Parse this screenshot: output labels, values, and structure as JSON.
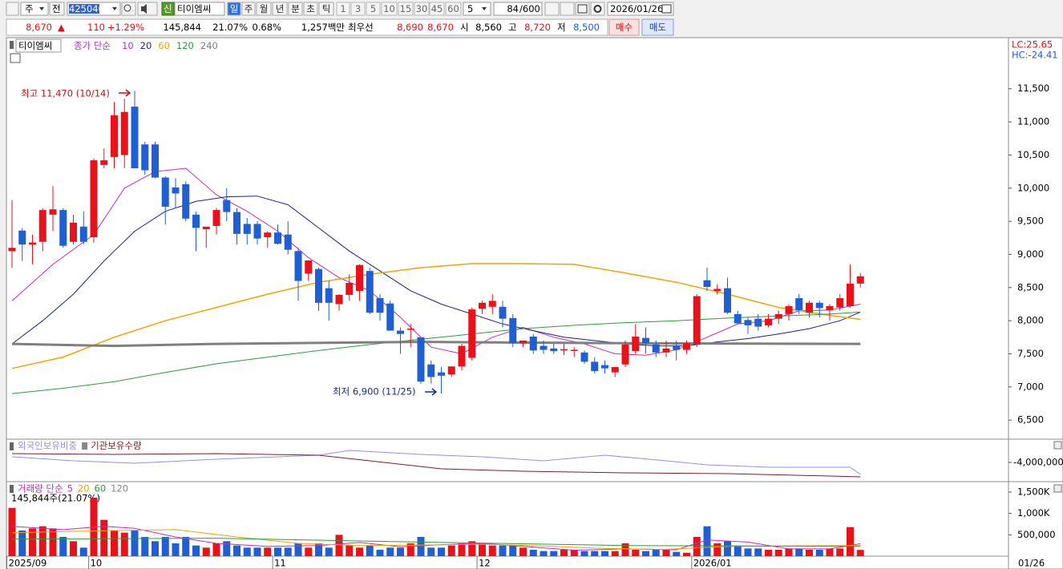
{
  "toolbar": {
    "market": "주",
    "scope": "전",
    "code": "425040",
    "badge": "신",
    "name": "티이엠씨",
    "periods": [
      "일",
      "주",
      "월",
      "년",
      "분",
      "초",
      "틱"
    ],
    "intervals": [
      "1",
      "3",
      "5",
      "10",
      "15",
      "30",
      "45",
      "60"
    ],
    "unit": "5",
    "count": "84",
    "max": "/600",
    "date": "2026/01/26"
  },
  "quote": {
    "price": "8,670",
    "arrow": "▲",
    "change": "110",
    "rate": "+1.29%",
    "volume": "145,844",
    "turnover": "21.07%",
    "ratio": "0.68%",
    "amount": "1,257백만",
    "best_label": "최우선",
    "ask": "8,690",
    "bid": "8,670",
    "open_label": "시",
    "open": "8,560",
    "high_label": "고",
    "high": "8,720",
    "low_label": "저",
    "low": "8,500",
    "buy": "매수",
    "sell": "매도"
  },
  "chart_data": {
    "type": "candlestick",
    "name": "티이엠씨",
    "ma_label": "종가 단순",
    "up_color": "#e8121a",
    "down_color": "#1f5fd1",
    "lc": "LC:25.65",
    "hc": "HC:-24.41",
    "annotations": [
      {
        "text": "최고 11,470 (10/14)",
        "color": "#c0141a"
      },
      {
        "text": "최저 6,900 (11/25)",
        "color": "#1a2a8c"
      }
    ],
    "open": [
      9050,
      9360,
      9150,
      9190,
      9600,
      9670,
      9190,
      9420,
      9260,
      10350,
      10470,
      10500,
      11230,
      10660,
      10660,
      10160,
      10010,
      10060,
      9600,
      9380,
      9430,
      9820,
      9640,
      9460,
      9460,
      9260,
      9330,
      9300,
      9050,
      8710,
      8780,
      8490,
      8250,
      8390,
      8450,
      8750,
      8340,
      8260,
      7850,
      7870,
      7750,
      7340,
      7220,
      7190,
      7310,
      7440,
      8180,
      8210,
      8210,
      8040,
      7660,
      7760,
      7620,
      7580,
      7560,
      7550,
      7520,
      7380,
      7330,
      7220,
      7340,
      7540,
      7740,
      7640,
      7520,
      7630,
      7560,
      7640,
      8610,
      8450,
      8490,
      8100,
      8010,
      8030,
      7930,
      8030,
      8100,
      8340,
      8120,
      8270,
      8160,
      8200,
      8220,
      8560
    ],
    "high": [
      9820,
      9400,
      9300,
      9700,
      10030,
      9700,
      9600,
      9650,
      10450,
      10600,
      11300,
      11350,
      11470,
      10700,
      10700,
      10180,
      10150,
      10100,
      9650,
      9400,
      9700,
      10000,
      9700,
      9550,
      9500,
      9350,
      9450,
      9500,
      9100,
      8900,
      8800,
      8600,
      8400,
      8700,
      8850,
      8800,
      8400,
      8300,
      7900,
      7950,
      7750,
      7400,
      7300,
      7300,
      7650,
      8200,
      8300,
      8400,
      8300,
      8100,
      7700,
      7800,
      7700,
      7650,
      7650,
      7600,
      7550,
      7450,
      7400,
      7300,
      7700,
      7950,
      7900,
      7700,
      7700,
      7700,
      7700,
      8400,
      8800,
      8550,
      8650,
      8150,
      8050,
      8100,
      8100,
      8150,
      8250,
      8400,
      8300,
      8300,
      8250,
      8400,
      8850,
      8720
    ],
    "low": [
      8800,
      8900,
      8850,
      9050,
      9350,
      9100,
      9150,
      9150,
      9180,
      10300,
      10300,
      10300,
      10300,
      10200,
      10150,
      9450,
      9700,
      9500,
      9050,
      9100,
      9300,
      9500,
      9150,
      9150,
      9150,
      9100,
      9150,
      9000,
      8300,
      8600,
      8150,
      8000,
      8150,
      8300,
      8300,
      8100,
      8000,
      7850,
      7500,
      7600,
      7050,
      7050,
      6900,
      7150,
      7250,
      7400,
      8100,
      8100,
      7900,
      7600,
      7600,
      7500,
      7500,
      7500,
      7480,
      7450,
      7350,
      7200,
      7200,
      7150,
      7300,
      7500,
      7500,
      7450,
      7450,
      7400,
      7500,
      7600,
      8450,
      8400,
      8100,
      7950,
      7800,
      7850,
      7900,
      7950,
      8000,
      8100,
      8050,
      8050,
      8000,
      8150,
      8200,
      8500
    ],
    "close": [
      9100,
      9150,
      9180,
      9670,
      9680,
      9130,
      9480,
      9190,
      10420,
      10420,
      11100,
      11150,
      10300,
      10270,
      10160,
      9720,
      9920,
      9540,
      9400,
      9420,
      9670,
      9640,
      9310,
      9310,
      9240,
      9330,
      9160,
      9070,
      8600,
      8910,
      8270,
      8270,
      8390,
      8570,
      8840,
      8120,
      8120,
      7850,
      7800,
      7880,
      7080,
      7150,
      7170,
      7310,
      7620,
      8170,
      8270,
      8300,
      8030,
      7660,
      7700,
      7550,
      7560,
      7540,
      7570,
      7560,
      7380,
      7240,
      7280,
      7300,
      7640,
      7760,
      7660,
      7520,
      7580,
      7560,
      7660,
      8370,
      8510,
      8480,
      8120,
      7960,
      7930,
      7910,
      8030,
      8100,
      8220,
      8160,
      8270,
      8190,
      8220,
      8340,
      8560,
      8670
    ],
    "ylim": [
      6200,
      12150
    ],
    "yticks": [
      {
        "value": 11500,
        "label": "11,500"
      },
      {
        "value": 11000,
        "label": "11,000"
      },
      {
        "value": 10500,
        "label": "10,500"
      },
      {
        "value": 10000,
        "label": "10,000"
      },
      {
        "value": 9500,
        "label": "9,500"
      },
      {
        "value": 9000,
        "label": "9,000"
      },
      {
        "value": 8500,
        "label": "8,500"
      },
      {
        "value": 8000,
        "label": "8,000"
      },
      {
        "value": 7500,
        "label": "7,500"
      },
      {
        "value": 7000,
        "label": "7,000"
      },
      {
        "value": 6500,
        "label": "6,500"
      }
    ],
    "xticks": [
      {
        "value": 0,
        "label": "2025/09"
      },
      {
        "value": 8,
        "label": "10"
      },
      {
        "value": 26,
        "label": "11"
      },
      {
        "value": 46,
        "label": "12"
      },
      {
        "value": 67,
        "label": "2026/01"
      }
    ],
    "date_end": "01/26",
    "averages": [
      {
        "name": "10",
        "color": "#c22cc2",
        "width": 1,
        "x": [
          0,
          4,
          8,
          11,
          14,
          17,
          20,
          23,
          26,
          29,
          32,
          35,
          38,
          41,
          44,
          47,
          50,
          53,
          56,
          59,
          62,
          65,
          68,
          71,
          74,
          77,
          80,
          83
        ],
        "values": [
          8300,
          8850,
          9300,
          10000,
          10250,
          10300,
          9900,
          9650,
          9350,
          8950,
          8650,
          8450,
          8050,
          7600,
          7500,
          7750,
          7900,
          7750,
          7650,
          7500,
          7480,
          7560,
          7750,
          7950,
          8000,
          8150,
          8160,
          8250
        ]
      },
      {
        "name": "20",
        "color": "#1a237e",
        "width": 1,
        "x": [
          0,
          3,
          6,
          9,
          12,
          15,
          18,
          21,
          24,
          27,
          30,
          33,
          36,
          39,
          42,
          45,
          48,
          51,
          54,
          57,
          60,
          63,
          66,
          69,
          72,
          75,
          78,
          81,
          83
        ],
        "values": [
          7650,
          8000,
          8400,
          8900,
          9350,
          9650,
          9800,
          9870,
          9880,
          9750,
          9400,
          9050,
          8750,
          8450,
          8250,
          8100,
          7950,
          7850,
          7750,
          7700,
          7650,
          7620,
          7620,
          7680,
          7730,
          7800,
          7880,
          8000,
          8130
        ]
      },
      {
        "name": "60",
        "color": "#f0a400",
        "width": 1.5,
        "x": [
          0,
          5,
          10,
          15,
          20,
          25,
          30,
          35,
          40,
          45,
          50,
          55,
          60,
          65,
          70,
          75,
          80,
          83
        ],
        "values": [
          7280,
          7450,
          7750,
          8000,
          8200,
          8400,
          8580,
          8700,
          8800,
          8860,
          8860,
          8850,
          8720,
          8580,
          8400,
          8200,
          8080,
          8020
        ]
      },
      {
        "name": "120",
        "color": "#2e9a3e",
        "width": 1,
        "x": [
          0,
          5,
          10,
          15,
          20,
          25,
          30,
          35,
          40,
          45,
          50,
          55,
          60,
          65,
          70,
          75,
          80,
          83
        ],
        "values": [
          6900,
          6980,
          7080,
          7220,
          7350,
          7450,
          7550,
          7640,
          7720,
          7800,
          7880,
          7930,
          7970,
          8000,
          8040,
          8070,
          8100,
          8130
        ]
      },
      {
        "name": "240",
        "color": "#7f7f7f",
        "width": 3,
        "x": [
          0,
          10,
          20,
          40,
          60,
          83
        ],
        "values": [
          7650,
          7620,
          7650,
          7680,
          7660,
          7650
        ]
      }
    ],
    "holdings": {
      "ylim": [
        -4700000,
        -3100000
      ],
      "yticks": [
        {
          "value": -4000000,
          "label": "-4,000,000"
        }
      ],
      "series": [
        {
          "name": "외국인보유비중",
          "color": "#9a8ee0",
          "x": [
            0,
            6,
            12,
            20,
            30,
            33,
            40,
            46,
            52,
            58,
            64,
            68,
            74,
            82,
            83
          ],
          "values": [
            -3767000,
            -3933000,
            -4033000,
            -3867000,
            -3700000,
            -3500000,
            -3667000,
            -3767000,
            -3933000,
            -3700000,
            -3933000,
            -4100000,
            -4200000,
            -4200000,
            -4500000
          ]
        },
        {
          "name": "기관보유수량",
          "color": "#7a1f2a",
          "x": [
            0,
            10,
            20,
            30,
            35,
            42,
            50,
            60,
            70,
            80,
            83
          ],
          "values": [
            -3633000,
            -3667000,
            -3633000,
            -3700000,
            -3933000,
            -4267000,
            -4367000,
            -4433000,
            -4467000,
            -4567000,
            -4600000
          ]
        }
      ]
    },
    "volume": {
      "label": "거래량 단순",
      "summary": "145,844주(21.07%)",
      "ylim": [
        0,
        1687500
      ],
      "yticks": [
        {
          "value": 1500000,
          "label": "1,500K"
        },
        {
          "value": 1000000,
          "label": "1,000K"
        },
        {
          "value": 500000,
          "label": "500,000"
        }
      ],
      "values": [
        1130000,
        600000,
        650000,
        700000,
        650000,
        450000,
        350000,
        200000,
        1370000,
        850000,
        600000,
        550000,
        600000,
        450000,
        350000,
        450000,
        300000,
        450000,
        250000,
        200000,
        300000,
        350000,
        250000,
        200000,
        200000,
        200000,
        200000,
        200000,
        300000,
        200000,
        300000,
        200000,
        500000,
        250000,
        200000,
        250000,
        150000,
        200000,
        200000,
        300000,
        450000,
        200000,
        200000,
        250000,
        300000,
        350000,
        300000,
        250000,
        250000,
        250000,
        200000,
        150000,
        120000,
        120000,
        150000,
        150000,
        120000,
        120000,
        120000,
        120000,
        300000,
        150000,
        120000,
        150000,
        150000,
        100000,
        80000,
        450000,
        700000,
        300000,
        350000,
        250000,
        180000,
        180000,
        150000,
        150000,
        180000,
        180000,
        150000,
        150000,
        180000,
        180000,
        680000,
        145844
      ],
      "averages": [
        {
          "name": "5",
          "color": "#c22cc2",
          "x": [
            0,
            5,
            9,
            12,
            16,
            20,
            25,
            30,
            34,
            38,
            42,
            46,
            50,
            55,
            60,
            65,
            68,
            72,
            76,
            80,
            83
          ],
          "values": [
            700000,
            620000,
            700000,
            650000,
            450000,
            300000,
            230000,
            250000,
            320000,
            220000,
            270000,
            300000,
            230000,
            140000,
            170000,
            150000,
            380000,
            330000,
            170000,
            170000,
            290000
          ]
        },
        {
          "name": "20",
          "color": "#f0a400",
          "x": [
            0,
            10,
            16,
            22,
            28,
            34,
            40,
            46,
            52,
            58,
            64,
            70,
            76,
            83
          ],
          "values": [
            550000,
            600000,
            620000,
            450000,
            300000,
            250000,
            260000,
            280000,
            240000,
            180000,
            160000,
            230000,
            240000,
            250000
          ]
        },
        {
          "name": "60",
          "color": "#2e9a3e",
          "x": [
            0,
            20,
            40,
            60,
            83
          ],
          "values": [
            400000,
            420000,
            330000,
            250000,
            230000
          ]
        },
        {
          "name": "120",
          "color": "#1a237e",
          "x": [],
          "values": []
        }
      ]
    }
  }
}
